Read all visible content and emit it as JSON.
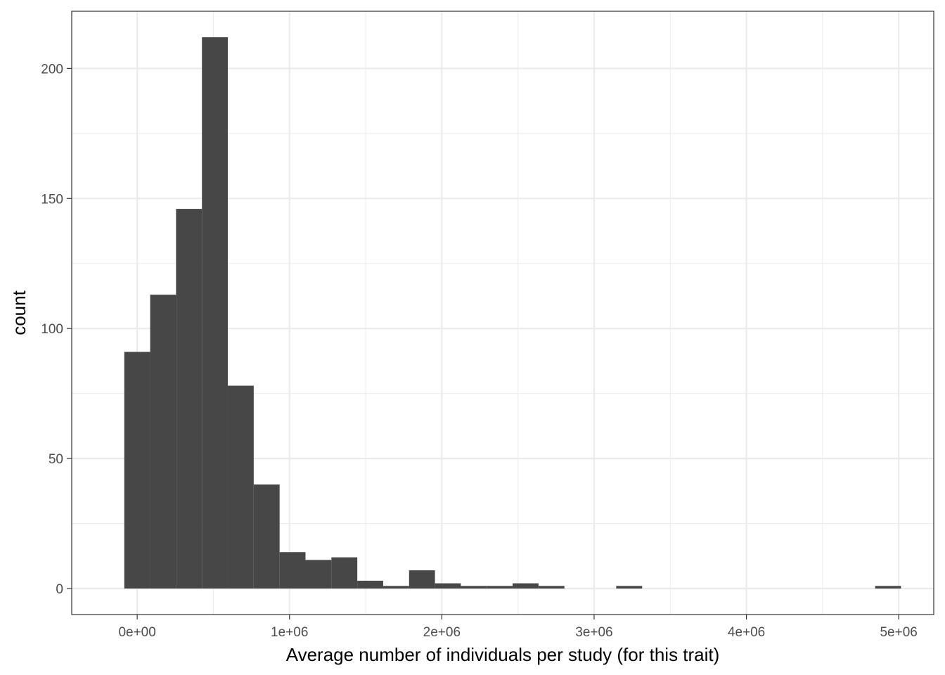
{
  "chart_data": {
    "type": "bar",
    "subtype": "histogram",
    "xlabel": "Average number of individuals per study (for this trait)",
    "ylabel": "count",
    "xlim": [
      -430000,
      5230000
    ],
    "ylim": [
      -10,
      222
    ],
    "x_ticks": [
      {
        "value": 0,
        "label": "0e+00"
      },
      {
        "value": 1000000,
        "label": "1e+06"
      },
      {
        "value": 2000000,
        "label": "2e+06"
      },
      {
        "value": 3000000,
        "label": "3e+06"
      },
      {
        "value": 4000000,
        "label": "4e+06"
      },
      {
        "value": 5000000,
        "label": "5e+06"
      }
    ],
    "y_ticks": [
      {
        "value": 0,
        "label": "0"
      },
      {
        "value": 50,
        "label": "50"
      },
      {
        "value": 100,
        "label": "100"
      },
      {
        "value": 150,
        "label": "150"
      },
      {
        "value": 200,
        "label": "200"
      }
    ],
    "bins": [
      {
        "x0": -85000,
        "x1": 85000,
        "count": 91
      },
      {
        "x0": 85000,
        "x1": 255000,
        "count": 113
      },
      {
        "x0": 255000,
        "x1": 425000,
        "count": 146
      },
      {
        "x0": 425000,
        "x1": 595000,
        "count": 212
      },
      {
        "x0": 595000,
        "x1": 765000,
        "count": 78
      },
      {
        "x0": 765000,
        "x1": 935000,
        "count": 40
      },
      {
        "x0": 935000,
        "x1": 1105000,
        "count": 14
      },
      {
        "x0": 1105000,
        "x1": 1275000,
        "count": 11
      },
      {
        "x0": 1275000,
        "x1": 1445000,
        "count": 12
      },
      {
        "x0": 1445000,
        "x1": 1615000,
        "count": 3
      },
      {
        "x0": 1615000,
        "x1": 1785000,
        "count": 1
      },
      {
        "x0": 1785000,
        "x1": 1955000,
        "count": 7
      },
      {
        "x0": 1955000,
        "x1": 2125000,
        "count": 2
      },
      {
        "x0": 2125000,
        "x1": 2295000,
        "count": 1
      },
      {
        "x0": 2295000,
        "x1": 2465000,
        "count": 1
      },
      {
        "x0": 2465000,
        "x1": 2635000,
        "count": 2
      },
      {
        "x0": 2635000,
        "x1": 2805000,
        "count": 1
      },
      {
        "x0": 3145000,
        "x1": 3315000,
        "count": 1
      },
      {
        "x0": 4845000,
        "x1": 5015000,
        "count": 1
      }
    ],
    "grid": true,
    "theme": "bw",
    "bar_color": "#474747",
    "grid_color": "#ebebeb",
    "border_color": "#333333"
  }
}
